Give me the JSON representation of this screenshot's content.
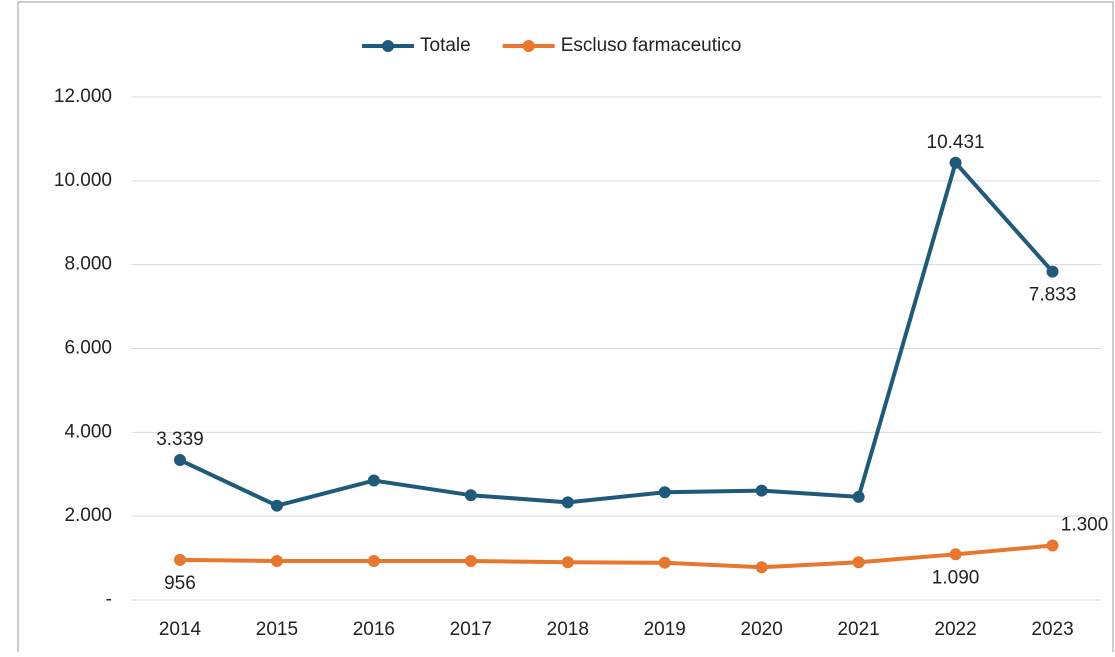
{
  "chart_data": {
    "type": "line",
    "categories": [
      "2014",
      "2015",
      "2016",
      "2017",
      "2018",
      "2019",
      "2020",
      "2021",
      "2022",
      "2023"
    ],
    "series": [
      {
        "name": "Totale",
        "color": "#1f5a7a",
        "values": [
          3339,
          2250,
          2850,
          2500,
          2330,
          2570,
          2610,
          2460,
          10431,
          7833
        ],
        "value_labels": [
          "3.339",
          null,
          null,
          null,
          null,
          null,
          null,
          null,
          "10.431",
          "7.833"
        ]
      },
      {
        "name": "Escluso farmaceutico",
        "color": "#e8762d",
        "values": [
          956,
          930,
          930,
          930,
          900,
          890,
          780,
          900,
          1090,
          1300
        ],
        "value_labels": [
          "956",
          null,
          null,
          null,
          null,
          null,
          null,
          null,
          "1.090",
          "1.300"
        ]
      }
    ],
    "ylim": [
      0,
      12000
    ],
    "yticks": [
      {
        "value": 0,
        "label": "-"
      },
      {
        "value": 2000,
        "label": "2.000"
      },
      {
        "value": 4000,
        "label": "4.000"
      },
      {
        "value": 6000,
        "label": "6.000"
      },
      {
        "value": 8000,
        "label": "8.000"
      },
      {
        "value": 10000,
        "label": "10.000"
      },
      {
        "value": 12000,
        "label": "12.000"
      }
    ],
    "grid": true,
    "legend": "top"
  }
}
